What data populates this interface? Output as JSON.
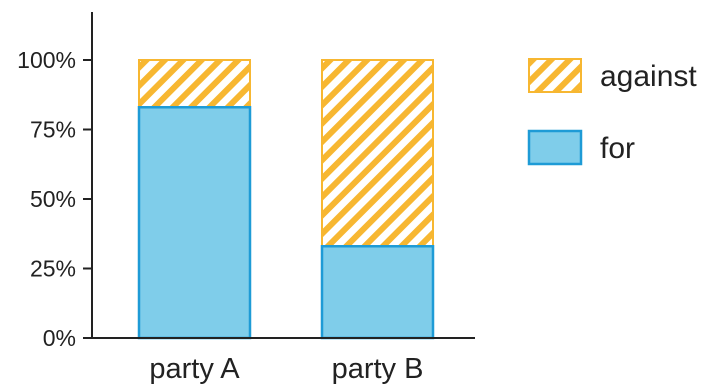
{
  "chart_data": {
    "type": "bar",
    "stacked": true,
    "percent_axis": true,
    "categories": [
      "party A",
      "party B"
    ],
    "series": [
      {
        "name": "for",
        "values": [
          83,
          33
        ],
        "color": "#7fcdea",
        "stroke": "#1e9bd6",
        "fill_style": "solid"
      },
      {
        "name": "against",
        "values": [
          17,
          67
        ],
        "color": "#f7b731",
        "stroke": "#f7b731",
        "fill_style": "diagonal-hatch"
      }
    ],
    "yticks": [
      "0%",
      "25%",
      "50%",
      "75%",
      "100%"
    ],
    "ylim": [
      0,
      100
    ],
    "legend": {
      "position": "right",
      "order": [
        "against",
        "for"
      ]
    },
    "grid": false,
    "title": "",
    "xlabel": "",
    "ylabel": ""
  }
}
